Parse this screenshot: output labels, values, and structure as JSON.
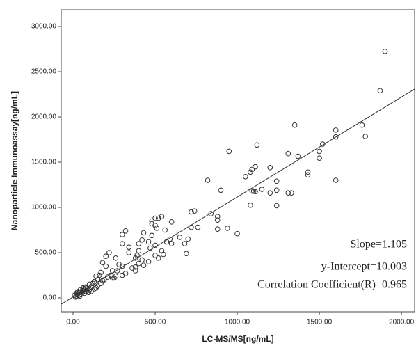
{
  "chart_data": {
    "type": "scatter",
    "x_label": "LC-MS/MS[ng/mL]",
    "y_label": "Nanoparticle Immunoassay[ng/mL]",
    "x": [
      1900,
      1870,
      1600,
      1600,
      1760,
      1780,
      1600,
      1500,
      1500,
      1520,
      1430,
      1430,
      1350,
      1310,
      1370,
      1310,
      1330,
      1240,
      1240,
      1240,
      1200,
      1200,
      1120,
      1110,
      1090,
      1080,
      1050,
      1090,
      1100,
      1110,
      1080,
      1150,
      950,
      900,
      880,
      880,
      880,
      820,
      840,
      1000,
      940,
      740,
      720,
      760,
      720,
      700,
      680,
      690,
      650,
      600,
      590,
      600,
      560,
      570,
      540,
      520,
      500,
      500,
      480,
      480,
      510,
      480,
      460,
      500,
      470,
      540,
      550,
      500,
      520,
      430,
      400,
      420,
      400,
      390,
      380,
      420,
      400,
      380,
      360,
      380,
      430,
      460,
      320,
      300,
      340,
      340,
      300,
      260,
      280,
      300,
      320,
      300,
      260,
      240,
      240,
      220,
      200,
      200,
      180,
      170,
      160,
      180,
      150,
      140,
      130,
      120,
      140,
      100,
      110,
      90,
      80,
      70,
      60,
      50,
      40,
      30,
      20,
      10,
      20,
      30,
      50,
      60,
      70,
      80,
      40,
      15,
      25,
      35,
      45,
      55,
      65,
      75,
      85,
      95,
      100,
      110,
      130,
      150,
      170,
      190,
      210,
      230,
      250,
      270
    ],
    "series": [
      {
        "color": "#333333",
        "values": [
          2725,
          2290,
          1855,
          1780,
          1910,
          1785,
          1300,
          1620,
          1545,
          1700,
          1390,
          1360,
          1910,
          1595,
          1565,
          1160,
          1160,
          1290,
          1190,
          1020,
          1440,
          1160,
          1690,
          1450,
          1420,
          1390,
          1340,
          1180,
          1180,
          1175,
          1025,
          1200,
          1620,
          1190,
          900,
          860,
          760,
          1300,
          930,
          710,
          770,
          960,
          950,
          780,
          780,
          650,
          600,
          490,
          670,
          840,
          650,
          600,
          750,
          620,
          900,
          880,
          880,
          800,
          850,
          820,
          770,
          690,
          620,
          580,
          550,
          520,
          480,
          470,
          440,
          720,
          600,
          640,
          520,
          470,
          440,
          420,
          380,
          340,
          330,
          300,
          360,
          400,
          740,
          700,
          560,
          500,
          600,
          440,
          370,
          350,
          270,
          250,
          240,
          300,
          220,
          500,
          460,
          350,
          390,
          280,
          250,
          190,
          200,
          240,
          180,
          160,
          110,
          150,
          120,
          100,
          110,
          90,
          80,
          70,
          60,
          50,
          40,
          30,
          20,
          70,
          40,
          110,
          50,
          70,
          20,
          10,
          60,
          30,
          90,
          55,
          100,
          120,
          80,
          60,
          90,
          70,
          100,
          130,
          160,
          200,
          230,
          250,
          220,
          300
        ]
      }
    ],
    "xlim": [
      -72,
      2080
    ],
    "ylim": [
      -154,
      3185
    ],
    "xticks": [
      {
        "value": 0,
        "label": "0.00"
      },
      {
        "value": 500,
        "label": "500.00"
      },
      {
        "value": 1000,
        "label": "1000.00"
      },
      {
        "value": 1500,
        "label": "1500.00"
      },
      {
        "value": 2000,
        "label": "2000.00"
      }
    ],
    "yticks": [
      {
        "value": 0,
        "label": "0.00"
      },
      {
        "value": 500,
        "label": "500.00"
      },
      {
        "value": 1000,
        "label": "1000.00"
      },
      {
        "value": 1500,
        "label": "1500.00"
      },
      {
        "value": 2000,
        "label": "2000.00"
      },
      {
        "value": 2500,
        "label": "2500.00"
      },
      {
        "value": 3000,
        "label": "3000.00"
      }
    ],
    "fit": {
      "slope": {
        "value": 1.105,
        "label": "Slope=1.105"
      },
      "intercept": {
        "value": 10.003,
        "label": "y-Intercept=10.003"
      },
      "r": {
        "value": 0.965,
        "label": "Correlation Coefficient(R)=0.965"
      }
    }
  }
}
